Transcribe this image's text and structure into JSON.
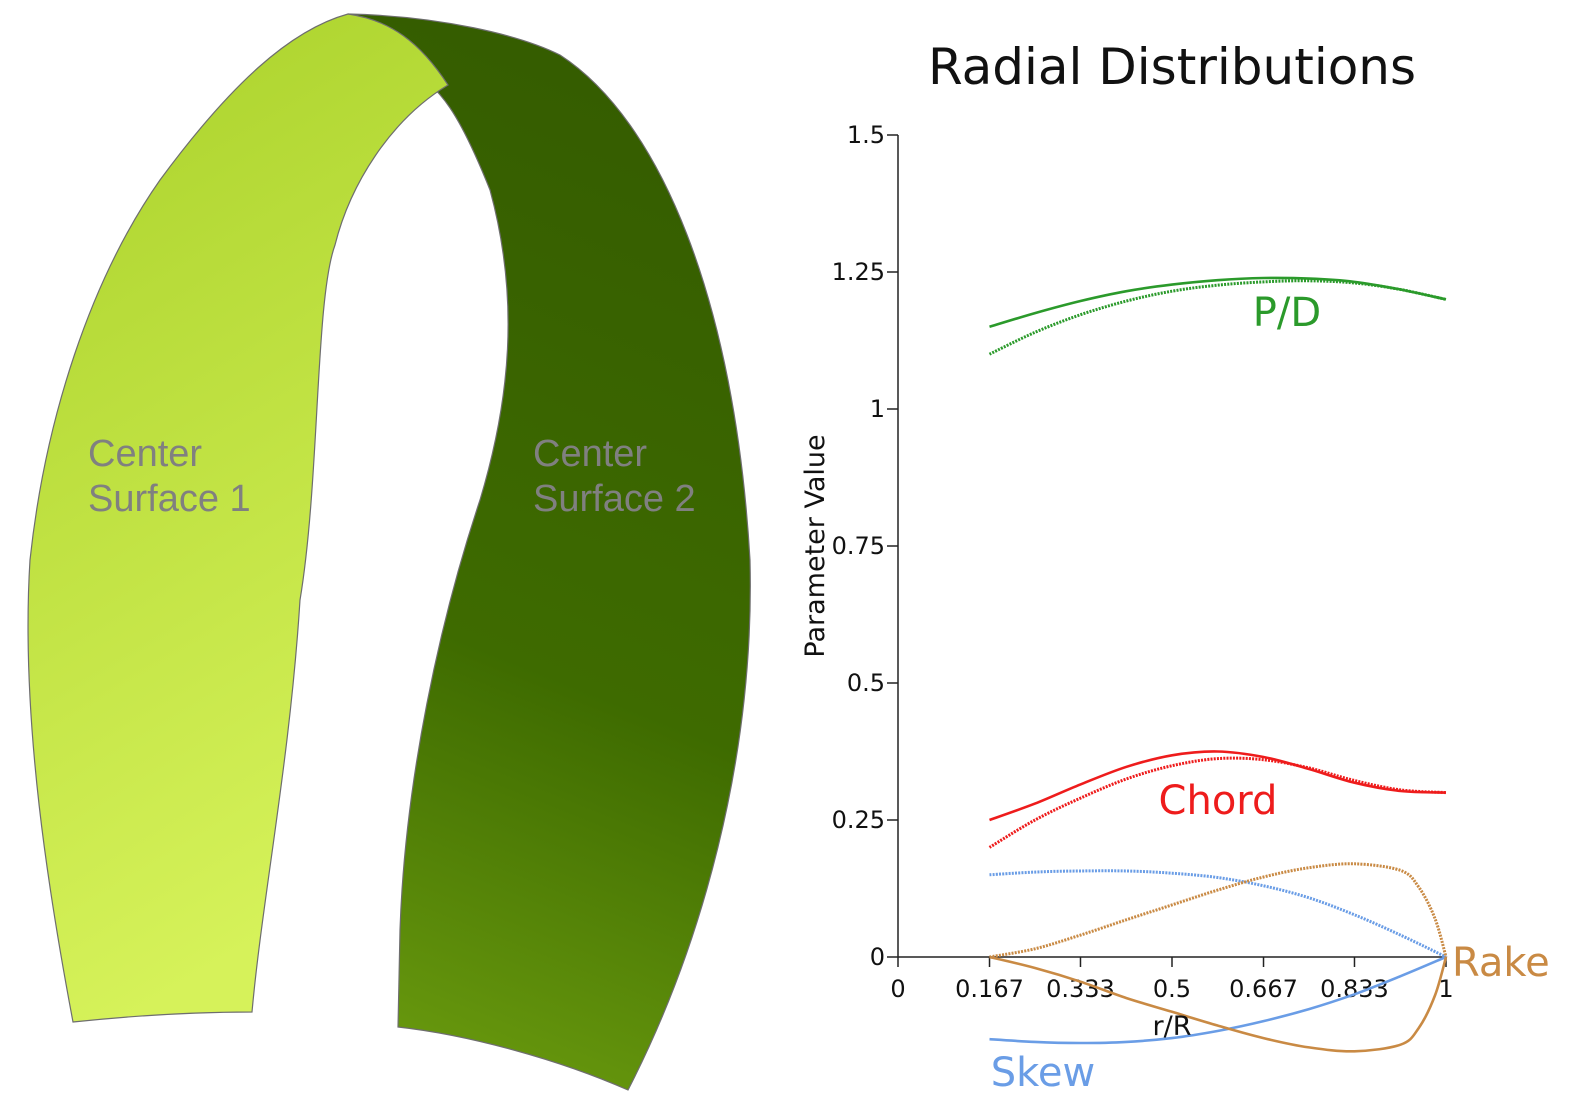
{
  "surfaces": {
    "surface1": {
      "label_line1": "Center",
      "label_line2": "Surface 1",
      "color_light": "#d6f25a",
      "color_dark": "#a9d12a"
    },
    "surface2": {
      "label_line1": "Center",
      "label_line2": "Surface 2",
      "color_light": "#6e9f10",
      "color_dark": "#355d00"
    }
  },
  "chart_data": {
    "type": "line",
    "title": "Radial Distributions",
    "xlabel": "r/R",
    "ylabel": "Parameter Value",
    "xlim": [
      0,
      1
    ],
    "ylim": [
      -0.15,
      1.5
    ],
    "x_ticks": [
      0,
      0.167,
      0.333,
      0.5,
      0.667,
      0.833,
      1
    ],
    "x_tick_labels": [
      "0",
      "0.167",
      "0.333",
      "0.5",
      "0.667",
      "0.833",
      "1"
    ],
    "y_ticks": [
      0,
      0.25,
      0.5,
      0.75,
      1,
      1.25,
      1.5
    ],
    "y_tick_labels": [
      "0",
      "0.25",
      "0.5",
      "0.75",
      "1",
      "1.25",
      "1.5"
    ],
    "grid": false,
    "series": [
      {
        "name": "P/D",
        "surface": 1,
        "style": "solid",
        "color": "#2b9a2b",
        "x": [
          0.167,
          0.25,
          0.333,
          0.417,
          0.5,
          0.583,
          0.667,
          0.75,
          0.833,
          0.917,
          1.0
        ],
        "y": [
          1.15,
          1.175,
          1.197,
          1.215,
          1.227,
          1.235,
          1.239,
          1.238,
          1.232,
          1.218,
          1.2
        ]
      },
      {
        "name": "P/D",
        "surface": 2,
        "style": "dotted",
        "color": "#2b9a2b",
        "x": [
          0.167,
          0.25,
          0.333,
          0.417,
          0.5,
          0.583,
          0.667,
          0.75,
          0.833,
          0.917,
          1.0
        ],
        "y": [
          1.1,
          1.14,
          1.172,
          1.197,
          1.215,
          1.226,
          1.232,
          1.234,
          1.23,
          1.218,
          1.2
        ]
      },
      {
        "name": "Chord",
        "surface": 1,
        "style": "solid",
        "color": "#ee1c1c",
        "x": [
          0.167,
          0.25,
          0.333,
          0.417,
          0.5,
          0.583,
          0.667,
          0.75,
          0.833,
          0.917,
          1.0
        ],
        "y": [
          0.25,
          0.28,
          0.315,
          0.347,
          0.368,
          0.375,
          0.365,
          0.343,
          0.318,
          0.303,
          0.3
        ]
      },
      {
        "name": "Chord",
        "surface": 2,
        "style": "dotted",
        "color": "#ee1c1c",
        "x": [
          0.167,
          0.25,
          0.333,
          0.417,
          0.5,
          0.583,
          0.667,
          0.75,
          0.833,
          0.917,
          1.0
        ],
        "y": [
          0.2,
          0.25,
          0.29,
          0.325,
          0.349,
          0.362,
          0.36,
          0.345,
          0.322,
          0.305,
          0.3
        ]
      },
      {
        "name": "Skew",
        "surface": 1,
        "style": "solid",
        "color": "#6a9de6",
        "x": [
          0.167,
          0.25,
          0.333,
          0.417,
          0.5,
          0.583,
          0.667,
          0.75,
          0.833,
          0.917,
          1.0
        ],
        "y": [
          -0.15,
          -0.155,
          -0.157,
          -0.155,
          -0.148,
          -0.135,
          -0.117,
          -0.095,
          -0.068,
          -0.035,
          0.0
        ]
      },
      {
        "name": "Skew",
        "surface": 2,
        "style": "dotted",
        "color": "#6a9de6",
        "x": [
          0.167,
          0.25,
          0.333,
          0.417,
          0.5,
          0.583,
          0.667,
          0.75,
          0.833,
          0.917,
          1.0
        ],
        "y": [
          0.15,
          0.155,
          0.157,
          0.157,
          0.153,
          0.145,
          0.13,
          0.108,
          0.077,
          0.04,
          0.0
        ]
      },
      {
        "name": "Rake",
        "surface": 1,
        "style": "solid",
        "color": "#c98a44",
        "x": [
          0.167,
          0.25,
          0.333,
          0.417,
          0.5,
          0.583,
          0.667,
          0.75,
          0.833,
          0.917,
          0.95,
          0.98,
          1.0
        ],
        "y": [
          0.0,
          -0.02,
          -0.045,
          -0.075,
          -0.1,
          -0.125,
          -0.148,
          -0.165,
          -0.172,
          -0.16,
          -0.13,
          -0.07,
          0.0
        ]
      },
      {
        "name": "Rake",
        "surface": 2,
        "style": "dotted",
        "color": "#c98a44",
        "x": [
          0.167,
          0.25,
          0.333,
          0.417,
          0.5,
          0.583,
          0.667,
          0.75,
          0.833,
          0.917,
          0.95,
          0.98,
          1.0
        ],
        "y": [
          0.0,
          0.015,
          0.04,
          0.068,
          0.095,
          0.122,
          0.146,
          0.163,
          0.17,
          0.158,
          0.128,
          0.07,
          0.0
        ]
      }
    ]
  }
}
